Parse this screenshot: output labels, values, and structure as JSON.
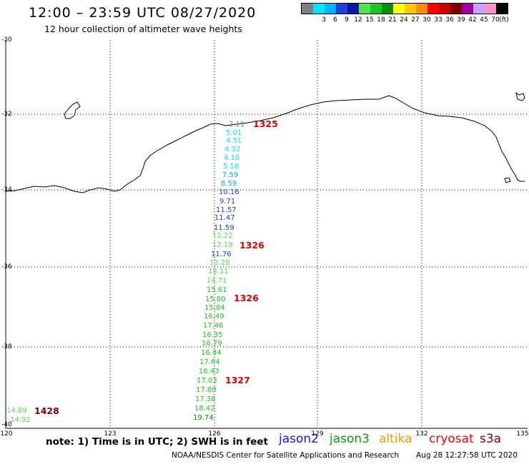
{
  "header": {
    "title": "12:00 – 23:59 UTC 08/27/2020",
    "subtitle": "12 hour collection of altimeter wave heights"
  },
  "scale": {
    "unit_label": "(ft)",
    "bins": [
      {
        "label": "",
        "color": "#7f7f7f"
      },
      {
        "label": "3",
        "color": "#00e5ff"
      },
      {
        "label": "6",
        "color": "#00b2ff"
      },
      {
        "label": "9",
        "color": "#1e3fe0"
      },
      {
        "label": "12",
        "color": "#0a1a9e"
      },
      {
        "label": "15",
        "color": "#50e350"
      },
      {
        "label": "18",
        "color": "#1cc81c"
      },
      {
        "label": "21",
        "color": "#0a8f0a"
      },
      {
        "label": "24",
        "color": "#ffff00"
      },
      {
        "label": "27",
        "color": "#ffc800"
      },
      {
        "label": "30",
        "color": "#ff8c00"
      },
      {
        "label": "33",
        "color": "#ff0000"
      },
      {
        "label": "36",
        "color": "#c80000"
      },
      {
        "label": "39",
        "color": "#7d0000"
      },
      {
        "label": "42",
        "color": "#a000a0"
      },
      {
        "label": "45",
        "color": "#c8a0ff"
      },
      {
        "label": "70",
        "color": "#ff90c8"
      },
      {
        "label": "",
        "color": "#000000"
      }
    ]
  },
  "axes": {
    "lat_labels": [
      "-30",
      "-32",
      "-34",
      "-36",
      "-38",
      "-40"
    ],
    "lon_labels": [
      "120",
      "123",
      "126",
      "129",
      "132",
      "135"
    ]
  },
  "observations": [
    {
      "value": "2.11",
      "color": "#7f7f7f"
    },
    {
      "value": "5.01",
      "color": "#00e5ff"
    },
    {
      "value": "4.51",
      "color": "#00e5ff"
    },
    {
      "value": "4.32",
      "color": "#00e5ff"
    },
    {
      "value": "4.10",
      "color": "#00e5ff"
    },
    {
      "value": "5.18",
      "color": "#00e5ff"
    },
    {
      "value": "7.59",
      "color": "#00b2ff"
    },
    {
      "value": "8.59",
      "color": "#00b2ff"
    },
    {
      "value": "10.16",
      "color": "#1e3fe0"
    },
    {
      "value": "9.71",
      "color": "#1e3fe0"
    },
    {
      "value": "11.57",
      "color": "#1e3fe0"
    },
    {
      "value": "11.47",
      "color": "#1e3fe0"
    },
    {
      "value": "11.59",
      "color": "#1e3fe0"
    },
    {
      "value": "12.22",
      "color": "#50e350"
    },
    {
      "value": "12.19",
      "color": "#50e350"
    },
    {
      "value": "11.76",
      "color": "#1e3fe0"
    },
    {
      "value": "13.28",
      "color": "#50e350"
    },
    {
      "value": "15.11",
      "color": "#50e350"
    },
    {
      "value": "14.71",
      "color": "#50e350"
    },
    {
      "value": "15.61",
      "color": "#1cc81c"
    },
    {
      "value": "15.80",
      "color": "#1cc81c"
    },
    {
      "value": "15.84",
      "color": "#1cc81c"
    },
    {
      "value": "16.49",
      "color": "#1cc81c"
    },
    {
      "value": "17.46",
      "color": "#1cc81c"
    },
    {
      "value": "16.35",
      "color": "#1cc81c"
    },
    {
      "value": "16.79",
      "color": "#1cc81c"
    },
    {
      "value": "16.44",
      "color": "#1cc81c"
    },
    {
      "value": "17.64",
      "color": "#1cc81c"
    },
    {
      "value": "16.43",
      "color": "#1cc81c"
    },
    {
      "value": "17.03",
      "color": "#1cc81c"
    },
    {
      "value": "17.80",
      "color": "#1cc81c"
    },
    {
      "value": "17.38",
      "color": "#1cc81c"
    },
    {
      "value": "18.42",
      "color": "#1cc81c"
    },
    {
      "value": "19.74",
      "color": "#0a8f0a"
    },
    {
      "value": "14.89",
      "color": "#50e350"
    },
    {
      "value": "14.92",
      "color": "#50e350"
    }
  ],
  "times": [
    {
      "value": "1325",
      "color": "#e00000"
    },
    {
      "value": "1326",
      "color": "#e00000"
    },
    {
      "value": "1326",
      "color": "#e00000"
    },
    {
      "value": "1327",
      "color": "#e00000"
    },
    {
      "value": "1428",
      "color": "#7d0000"
    }
  ],
  "footer": {
    "note": "note: 1) Time is in UTC; 2) SWH is in feet",
    "legend": [
      {
        "name": "jason2",
        "color": "#0a1aff"
      },
      {
        "name": "jason3",
        "color": "#0a9a0a"
      },
      {
        "name": "altika",
        "color": "#ff9a00"
      },
      {
        "name": "cryosat",
        "color": "#ff0000"
      },
      {
        "name": "s3a",
        "color": "#7d0000"
      }
    ],
    "credit": "NOAA/NESDIS Center for Satellite Applications and Research",
    "timestamp": "Aug 28 12:27:58 UTC 2020"
  }
}
